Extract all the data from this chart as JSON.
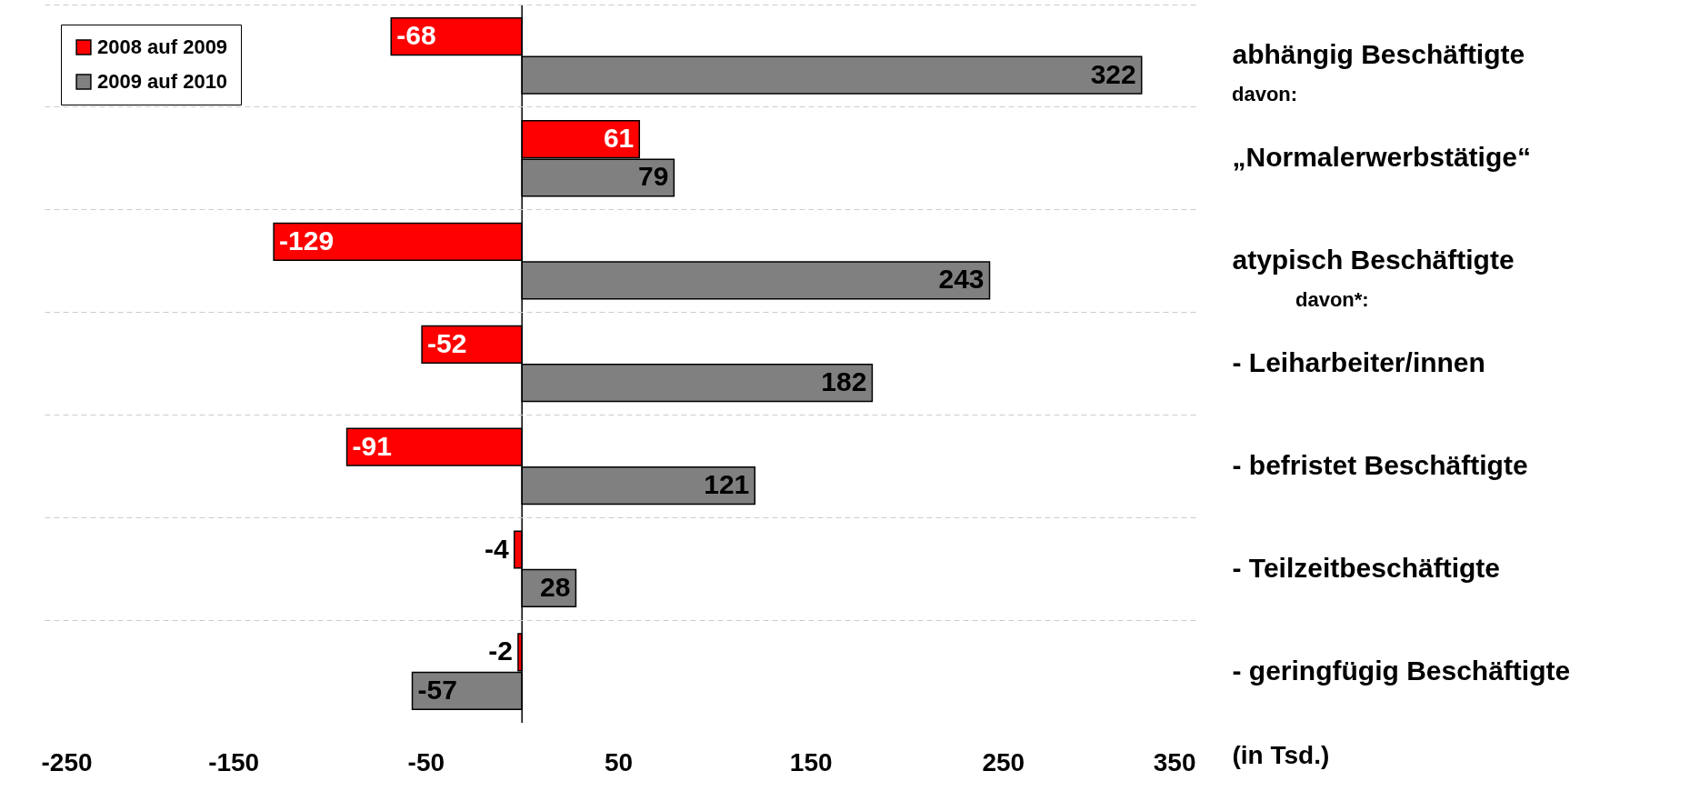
{
  "chart_data": {
    "type": "bar",
    "orientation": "horizontal",
    "xlabel": "(in Tsd.)",
    "categories": [
      "abhängig Beschäftigte",
      "„Normalerwerbstätige“",
      "atypisch Beschäftigte",
      "- Leiharbeiter/innen",
      "- befristet Beschäftigte",
      "- Teilzeitbeschäftigte",
      "- geringfügig Beschäftigte"
    ],
    "series": [
      {
        "name": "2008 auf 2009",
        "color": "#ff0000",
        "values": [
          -68,
          61,
          -129,
          -52,
          -91,
          -4,
          -2
        ]
      },
      {
        "name": "2009 auf 2010",
        "color": "#808080",
        "values": [
          322,
          79,
          243,
          182,
          121,
          28,
          -57
        ]
      }
    ],
    "xlim": [
      -250,
      350
    ],
    "xticks": [
      -250,
      -150,
      -50,
      50,
      150,
      250,
      350
    ],
    "data_labels": true,
    "legend": "top left",
    "grid": "y",
    "ref_lines": [
      {
        "axis": "x",
        "value": 0
      }
    ],
    "annotations": [
      "davon:",
      "davon*:"
    ]
  }
}
